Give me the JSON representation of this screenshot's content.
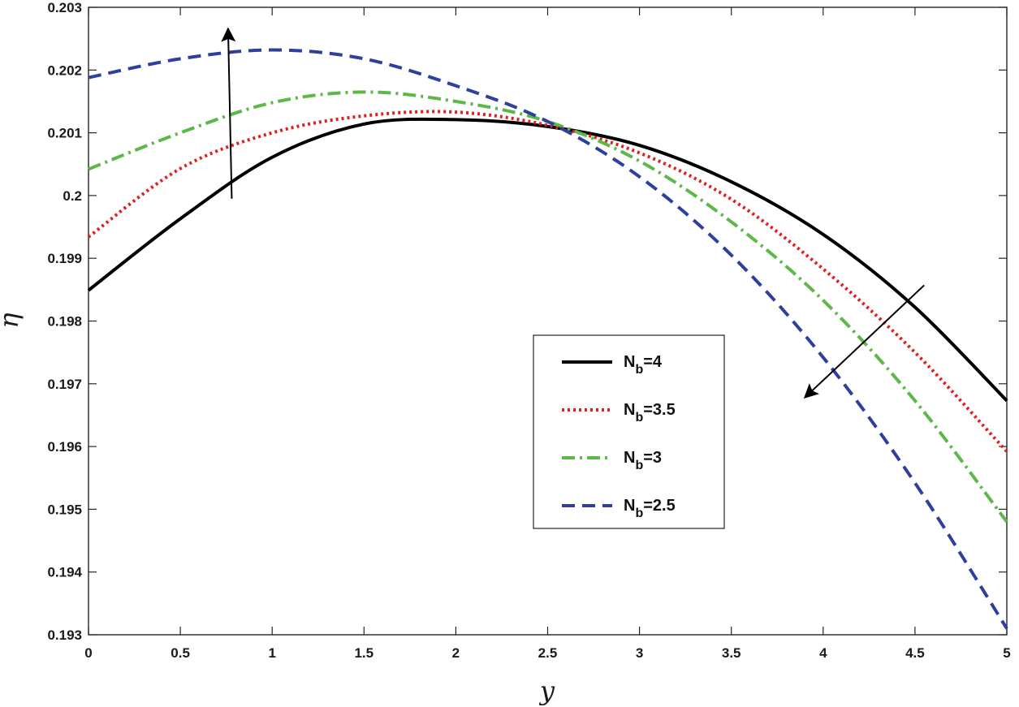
{
  "chart_data": {
    "type": "line",
    "xlabel": "y",
    "ylabel": "η",
    "xlim": [
      0,
      5
    ],
    "ylim": [
      0.193,
      0.203
    ],
    "xticks": [
      "0",
      "0.5",
      "1",
      "1.5",
      "2",
      "2.5",
      "3",
      "3.5",
      "4",
      "4.5",
      "5"
    ],
    "yticks": [
      "0.193",
      "0.194",
      "0.195",
      "0.196",
      "0.197",
      "0.198",
      "0.199",
      "0.2",
      "0.201",
      "0.202",
      "0.203"
    ],
    "grid": false,
    "legend_position": "center-right",
    "series": [
      {
        "label_main": "N",
        "label_sub": "b",
        "label_value": "=4",
        "color": "#000000",
        "style": "solid",
        "x": [
          0,
          0.5,
          1,
          1.5,
          2,
          2.5,
          3,
          3.5,
          4,
          4.5,
          5
        ],
        "y": [
          0.19849,
          0.19963,
          0.20061,
          0.20114,
          0.20121,
          0.2011,
          0.2008,
          0.20022,
          0.19938,
          0.19822,
          0.19673
        ]
      },
      {
        "label_main": "N",
        "label_sub": "b",
        "label_value": "=3.5",
        "color": "#e02020",
        "style": "dotted",
        "x": [
          0,
          0.5,
          1,
          1.5,
          2,
          2.5,
          3,
          3.5,
          4,
          4.5,
          5
        ],
        "y": [
          0.19934,
          0.20043,
          0.201,
          0.20127,
          0.20133,
          0.20112,
          0.20068,
          0.19994,
          0.19883,
          0.1975,
          0.19592
        ]
      },
      {
        "label_main": "N",
        "label_sub": "b",
        "label_value": "=3",
        "color": "#5db84a",
        "style": "dashdot",
        "x": [
          0,
          0.5,
          1,
          1.5,
          2,
          2.5,
          3,
          3.5,
          4,
          4.5,
          5
        ],
        "y": [
          0.20042,
          0.201,
          0.20148,
          0.20165,
          0.2015,
          0.20118,
          0.20055,
          0.19958,
          0.19833,
          0.19673,
          0.1948
        ]
      },
      {
        "label_main": "N",
        "label_sub": "b",
        "label_value": "=2.5",
        "color": "#2e3f9e",
        "style": "dashed",
        "x": [
          0,
          0.5,
          1,
          1.5,
          2,
          2.5,
          3,
          3.5,
          4,
          4.5,
          5
        ],
        "y": [
          0.20188,
          0.20218,
          0.20232,
          0.20218,
          0.20175,
          0.20118,
          0.2003,
          0.19905,
          0.19742,
          0.19542,
          0.1931
        ]
      }
    ],
    "annotations": [
      {
        "type": "arrow",
        "from": [
          0.78,
          0.19995
        ],
        "to": [
          0.76,
          0.20266
        ]
      },
      {
        "type": "arrow",
        "from": [
          4.55,
          0.19857
        ],
        "to": [
          3.9,
          0.19678
        ]
      }
    ]
  }
}
